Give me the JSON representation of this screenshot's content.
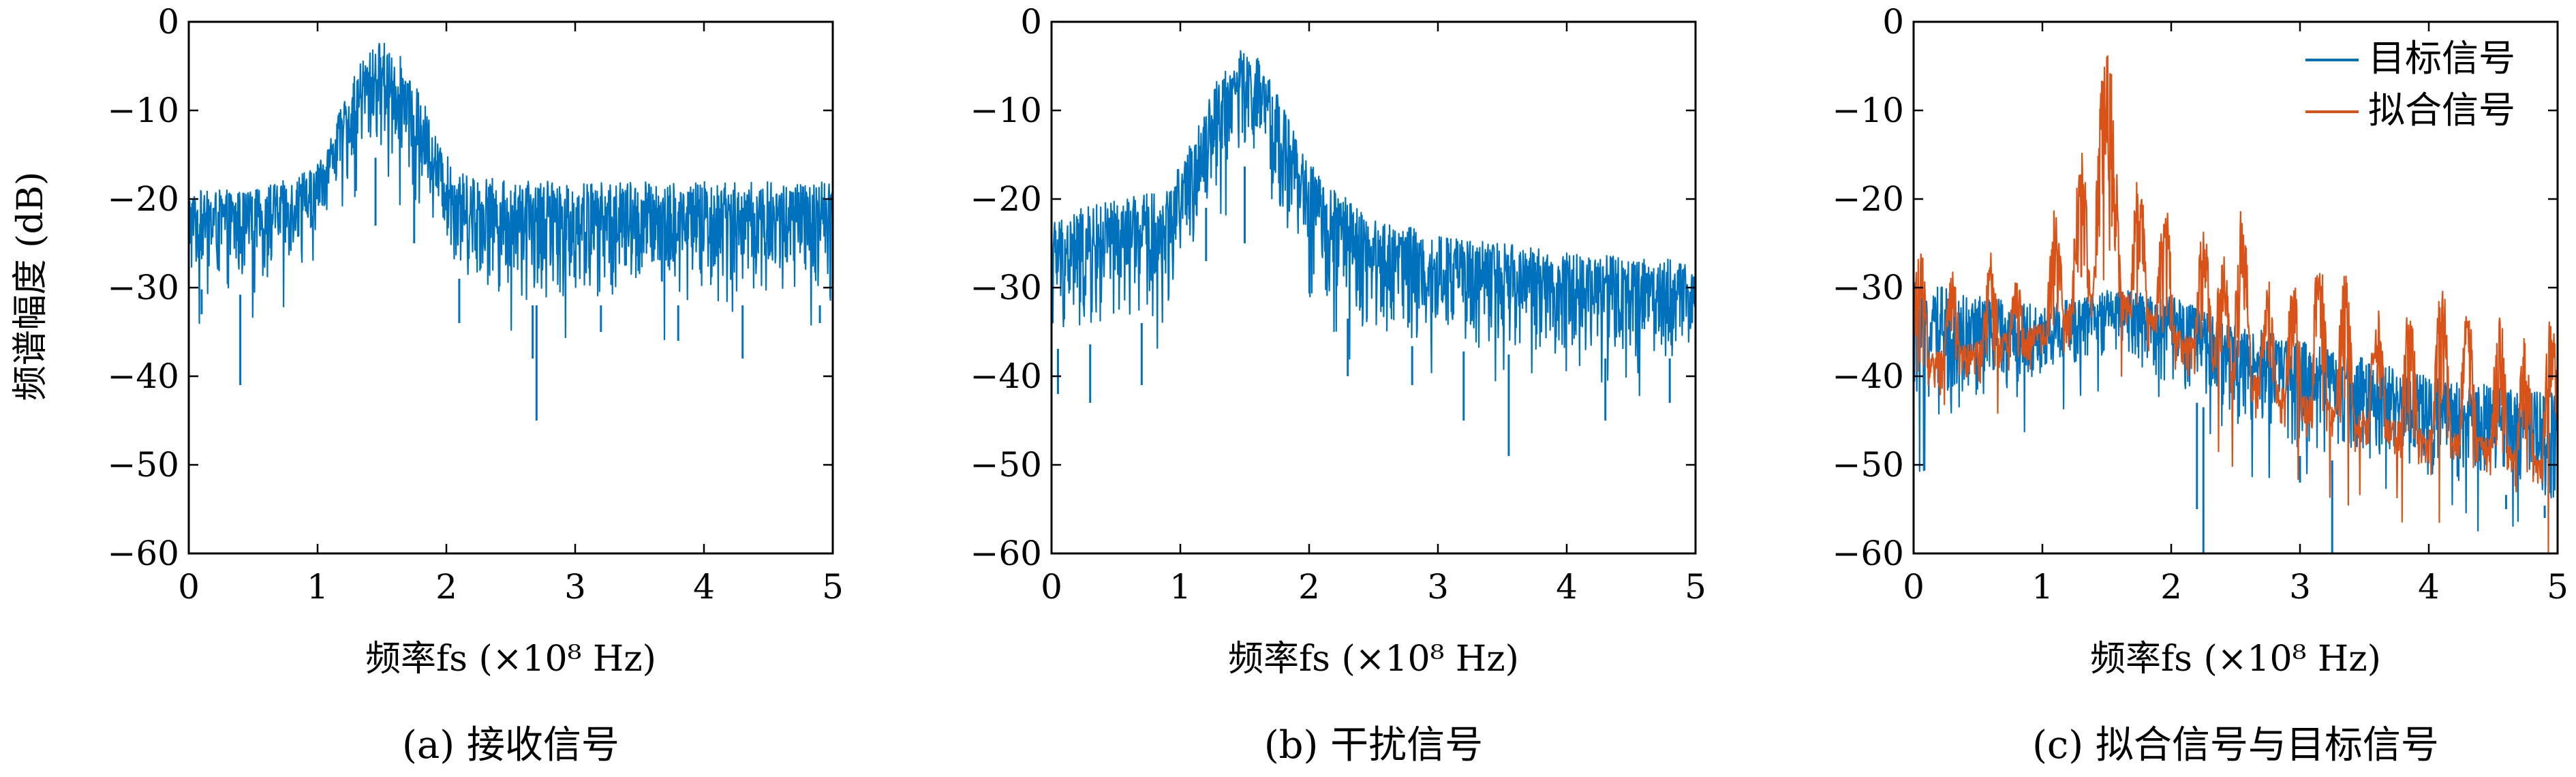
{
  "figure": {
    "ylabel": "频谱幅度 (dB)",
    "xlabel": "频率fs (×10⁸ Hz)"
  },
  "chart_data": [
    {
      "type": "line",
      "caption": "(a) 接收信号",
      "xlabel": "频率fs (×10⁸ Hz)",
      "ylabel": "频谱幅度 (dB)",
      "xlim": [
        0,
        5
      ],
      "ylim": [
        -60,
        0
      ],
      "x_ticks": [
        "0",
        "1",
        "2",
        "3",
        "4",
        "5"
      ],
      "y_ticks": [
        "0",
        "−10",
        "−20",
        "−30",
        "−40",
        "−50",
        "−60"
      ],
      "grid": false,
      "series": [
        {
          "color": "#0072BD",
          "envelope": {
            "x": [
              0,
              0.5,
              0.9,
              1.05,
              1.2,
              1.35,
              1.5,
              1.65,
              1.8,
              1.95,
              2.1,
              2.5,
              3.0,
              4.0,
              5.0
            ],
            "max": [
              -19,
              -19,
              -17,
              -15,
              -9,
              -4,
              -2,
              -4,
              -8,
              -14,
              -17,
              -18,
              -18,
              -18,
              -18
            ],
            "min": [
              -30,
              -31,
              -26,
              -22,
              -18,
              -16,
              -15,
              -16,
              -19,
              -24,
              -29,
              -32,
              -32,
              -32,
              -32
            ]
          },
          "dips": [
            {
              "x": 0.4,
              "y": -41
            },
            {
              "x": 0.1,
              "y": -33
            },
            {
              "x": 1.45,
              "y": -23
            },
            {
              "x": 1.75,
              "y": -25
            },
            {
              "x": 2.1,
              "y": -34
            },
            {
              "x": 2.67,
              "y": -38
            },
            {
              "x": 2.7,
              "y": -45
            },
            {
              "x": 3.2,
              "y": -35
            },
            {
              "x": 3.8,
              "y": -36
            },
            {
              "x": 4.3,
              "y": -38
            },
            {
              "x": 4.9,
              "y": -34
            }
          ]
        }
      ]
    },
    {
      "type": "line",
      "caption": "(b) 干扰信号",
      "xlabel": "频率fs (×10⁸ Hz)",
      "xlim": [
        0,
        5
      ],
      "ylim": [
        -60,
        0
      ],
      "x_ticks": [
        "0",
        "1",
        "2",
        "3",
        "4",
        "5"
      ],
      "y_ticks": [
        "0",
        "−10",
        "−20",
        "−30",
        "−40",
        "−50",
        "−60"
      ],
      "grid": false,
      "series": [
        {
          "color": "#0072BD",
          "envelope": {
            "x": [
              0,
              0.5,
              0.9,
              1.1,
              1.3,
              1.45,
              1.6,
              1.75,
              1.9,
              2.1,
              2.5,
              3.0,
              4.0,
              5.0
            ],
            "max": [
              -22,
              -20,
              -19,
              -13,
              -6,
              -3,
              -4,
              -8,
              -13,
              -18,
              -22,
              -24,
              -26,
              -27
            ],
            "min": [
              -37,
              -36,
              -32,
              -24,
              -18,
              -16,
              -17,
              -20,
              -26,
              -31,
              -36,
              -37,
              -38,
              -38
            ]
          },
          "dips": [
            {
              "x": 0.05,
              "y": -42
            },
            {
              "x": 0.3,
              "y": -43
            },
            {
              "x": 0.7,
              "y": -41
            },
            {
              "x": 1.2,
              "y": -27
            },
            {
              "x": 1.5,
              "y": -25
            },
            {
              "x": 2.3,
              "y": -40
            },
            {
              "x": 2.8,
              "y": -41
            },
            {
              "x": 3.2,
              "y": -45
            },
            {
              "x": 3.55,
              "y": -49
            },
            {
              "x": 4.3,
              "y": -45
            },
            {
              "x": 4.8,
              "y": -43
            }
          ]
        }
      ]
    },
    {
      "type": "line",
      "caption": "(c) 拟合信号与目标信号",
      "xlabel": "频率fs (×10⁸ Hz)",
      "xlim": [
        0,
        5
      ],
      "ylim": [
        -60,
        0
      ],
      "x_ticks": [
        "0",
        "1",
        "2",
        "3",
        "4",
        "5"
      ],
      "y_ticks": [
        "0",
        "−10",
        "−20",
        "−30",
        "−40",
        "−50",
        "−60"
      ],
      "grid": false,
      "legend": {
        "position": "top-right",
        "entries": [
          {
            "label": "目标信号",
            "color": "#0072BD"
          },
          {
            "label": "拟合信号",
            "color": "#D95319"
          }
        ]
      },
      "series": [
        {
          "name": "目标信号",
          "color": "#0072BD",
          "envelope": {
            "x": [
              0,
              0.5,
              1.0,
              1.5,
              2.0,
              2.5,
              3.0,
              3.5,
              4.0,
              4.5,
              5.0
            ],
            "max": [
              -29,
              -31,
              -32,
              -30,
              -31,
              -34,
              -36,
              -38,
              -40,
              -41,
              -42
            ],
            "min": [
              -45,
              -44,
              -42,
              -38,
              -41,
              -46,
              -49,
              -50,
              -52,
              -53,
              -55
            ]
          },
          "dips": [
            {
              "x": 2.25,
              "y": -60
            },
            {
              "x": 3.25,
              "y": -60
            },
            {
              "x": 2.2,
              "y": -55
            },
            {
              "x": 3.0,
              "y": -52
            },
            {
              "x": 4.6,
              "y": -55
            },
            {
              "x": 4.9,
              "y": -56
            }
          ]
        },
        {
          "name": "拟合信号",
          "color": "#D95319",
          "lobes": [
            {
              "x": 0.05,
              "peak": -25
            },
            {
              "x": 0.3,
              "peak": -28
            },
            {
              "x": 0.6,
              "peak": -26
            },
            {
              "x": 0.8,
              "peak": -29
            },
            {
              "x": 1.1,
              "peak": -21
            },
            {
              "x": 1.3,
              "peak": -13
            },
            {
              "x": 1.5,
              "peak": -3
            },
            {
              "x": 1.75,
              "peak": -17
            },
            {
              "x": 1.95,
              "peak": -20
            },
            {
              "x": 2.25,
              "peak": -23
            },
            {
              "x": 2.4,
              "peak": -26
            },
            {
              "x": 2.55,
              "peak": -21
            },
            {
              "x": 2.75,
              "peak": -29
            },
            {
              "x": 2.95,
              "peak": -29
            },
            {
              "x": 3.15,
              "peak": -26
            },
            {
              "x": 3.35,
              "peak": -28
            },
            {
              "x": 3.6,
              "peak": -32
            },
            {
              "x": 3.85,
              "peak": -32
            },
            {
              "x": 4.1,
              "peak": -29
            },
            {
              "x": 4.3,
              "peak": -32
            },
            {
              "x": 4.55,
              "peak": -33
            },
            {
              "x": 4.75,
              "peak": -35
            },
            {
              "x": 4.95,
              "peak": -33
            }
          ],
          "floor": {
            "x": [
              0,
              0.5,
              1.0,
              1.5,
              2.0,
              2.5,
              3.0,
              3.5,
              4.0,
              4.5,
              5.0
            ],
            "min": [
              -44,
              -42,
              -40,
              -35,
              -40,
              -45,
              -48,
              -50,
              -52,
              -53,
              -56
            ]
          }
        }
      ]
    }
  ]
}
